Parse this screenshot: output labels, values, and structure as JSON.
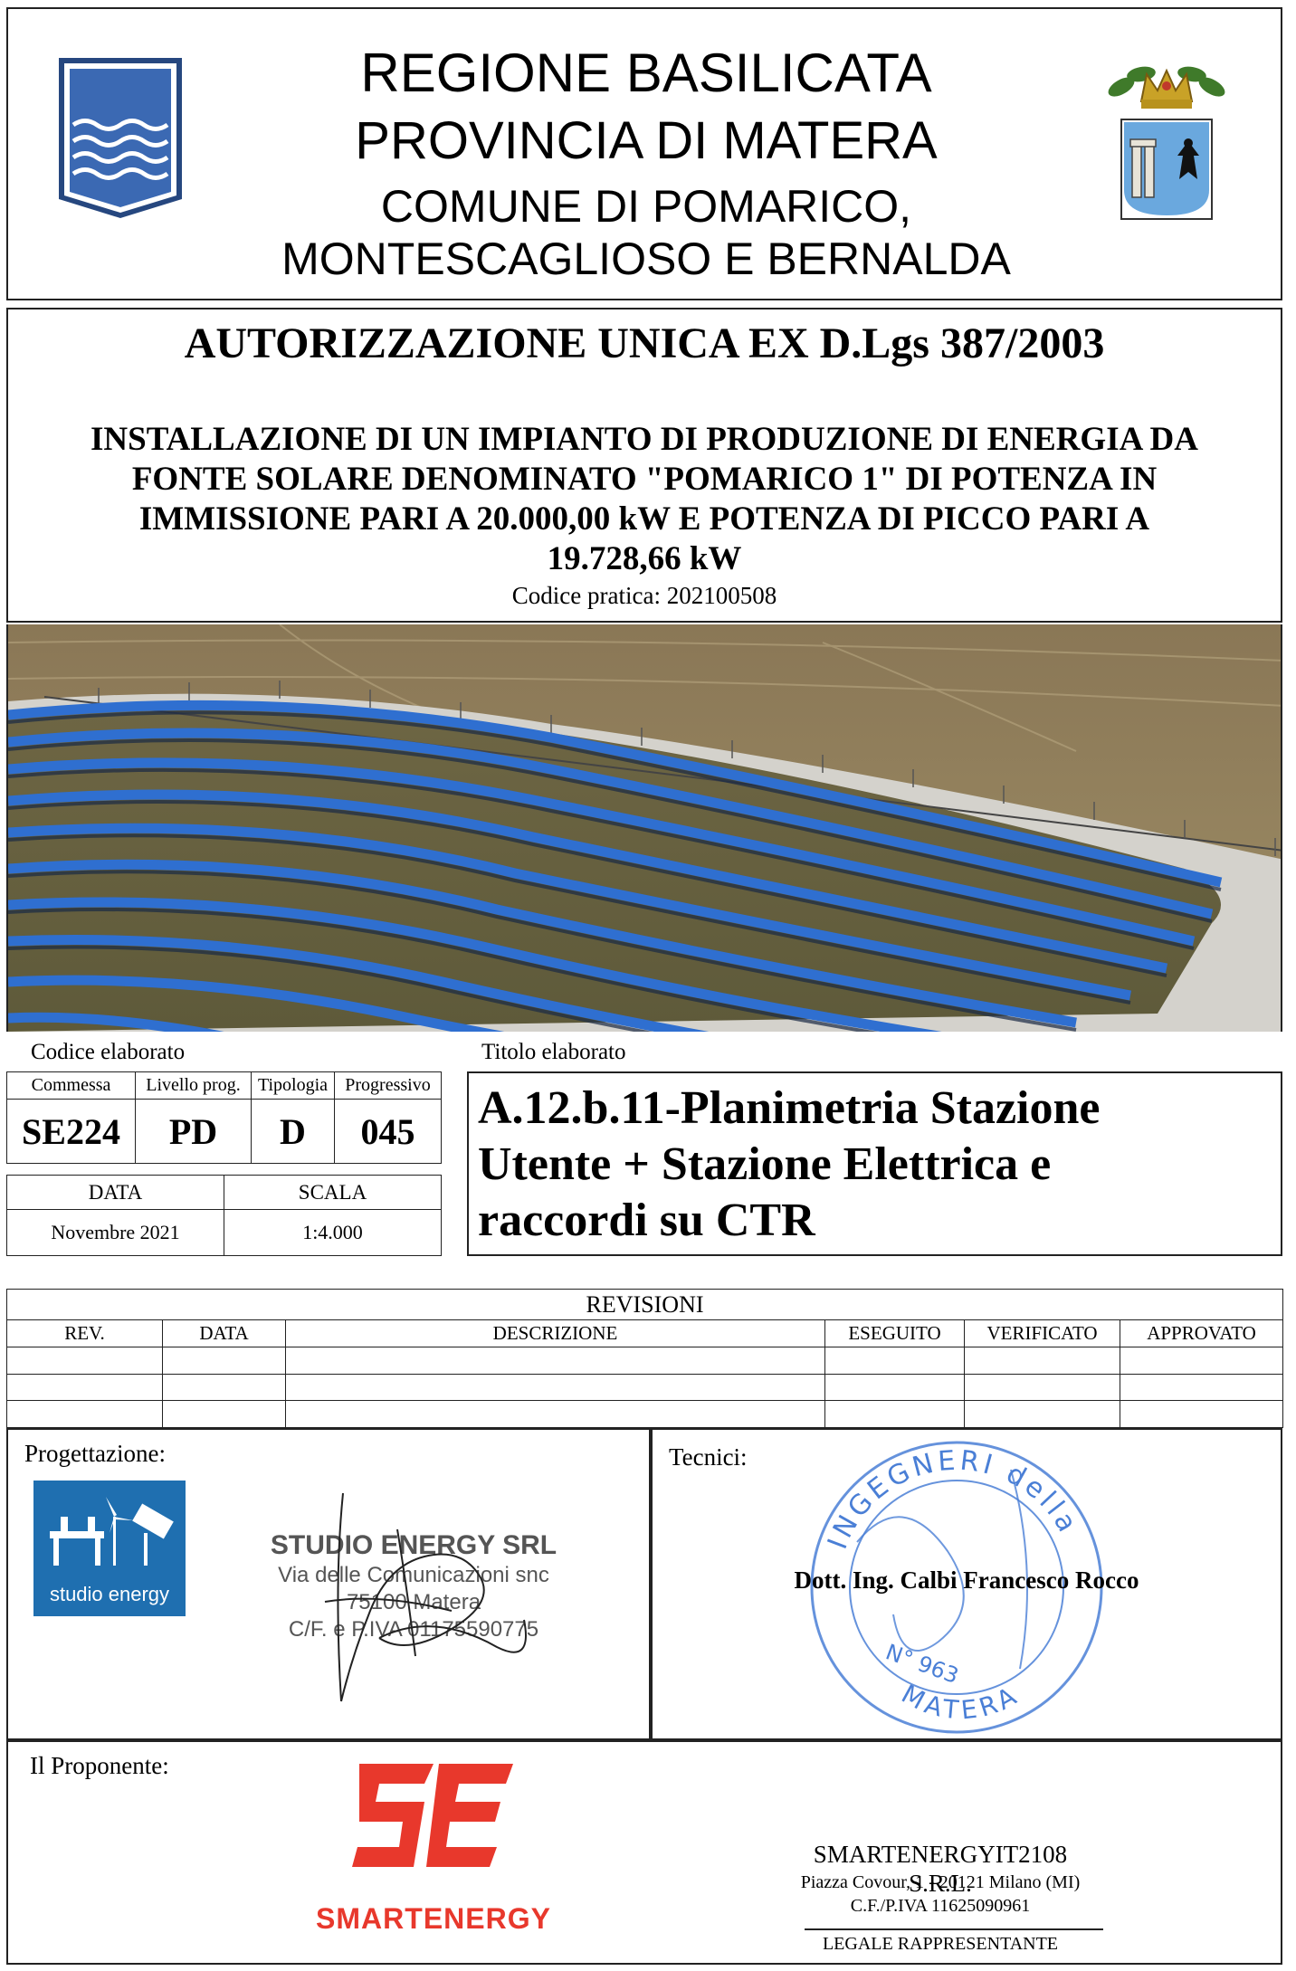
{
  "header": {
    "line1": "REGIONE BASILICATA",
    "line2": "PROVINCIA DI MATERA",
    "line3": "COMUNE DI POMARICO,",
    "line4": "MONTESCAGLIOSO E BERNALDA",
    "left_logo_icon": "basilicata-waves-emblem",
    "right_logo_icon": "matera-province-crest"
  },
  "authorization": {
    "title": "AUTORIZZAZIONE UNICA EX D.Lgs 387/2003",
    "description_lines": [
      "INSTALLAZIONE DI UN IMPIANTO DI PRODUZIONE DI ENERGIA DA",
      "FONTE SOLARE DENOMINATO \"POMARICO 1\" DI POTENZA IN",
      "IMMISSIONE PARI A 20.000,00 kW E POTENZA DI PICCO PARI A",
      "19.728,66 kW"
    ],
    "codice_pratica": "Codice pratica: 202100508"
  },
  "photo": {
    "icon": "solar-farm-rendering"
  },
  "codice_elaborato": {
    "label": "Codice elaborato",
    "headers": [
      "Commessa",
      "Livello prog.",
      "Tipologia",
      "Progressivo"
    ],
    "values": [
      "SE224",
      "PD",
      "D",
      "045"
    ],
    "data_label": "DATA",
    "scala_label": "SCALA",
    "data_value": "Novembre 2021",
    "scala_value": "1:4.000"
  },
  "titolo_elaborato": {
    "label": "Titolo elaborato",
    "lines": [
      "A.12.b.11-Planimetria Stazione",
      "Utente + Stazione Elettrica e",
      "raccordi su CTR"
    ]
  },
  "revisioni": {
    "title": "REVISIONI",
    "columns": [
      "REV.",
      "DATA",
      "DESCRIZIONE",
      "ESEGUITO",
      "VERIFICATO",
      "APPROVATO"
    ],
    "rows": [
      [
        "",
        "",
        "",
        "",
        "",
        ""
      ],
      [
        "",
        "",
        "",
        "",
        "",
        ""
      ],
      [
        "",
        "",
        "",
        "",
        "",
        ""
      ]
    ]
  },
  "progettazione": {
    "label": "Progettazione:",
    "logo_text": "studio energy",
    "stamp_name": "STUDIO ENERGY SRL",
    "stamp_line2": "Via delle Comunicazioni snc",
    "stamp_line3": "75100 Matera",
    "stamp_line4": "C/F. e P.IVA 01175590775",
    "signature_icon": "handwritten-signature"
  },
  "tecnici": {
    "label": "Tecnici:",
    "name": "Dott. Ing. Calbi Francesco Rocco",
    "seal_icon": "engineers-order-seal",
    "seal_top_text": "INGEGNERI della",
    "seal_bottom_text": "MATERA",
    "seal_number": "N° 963"
  },
  "proponente": {
    "label": "Il Proponente:",
    "logo_text": "SMARTENERGY",
    "company": "SMARTENERGYIT2108 S.R.L.",
    "address": "Piazza Covour, 1 - 20121 Milano (MI)",
    "piva": "C.F./P.IVA 11625090961",
    "role": "LEGALE RAPPRESENTANTE"
  },
  "colors": {
    "smartenergy_red": "#e8382c",
    "studio_energy_blue": "#1f6fb0",
    "seal_blue": "#4a7fd6",
    "panel_blue": "#2f6fd0"
  }
}
